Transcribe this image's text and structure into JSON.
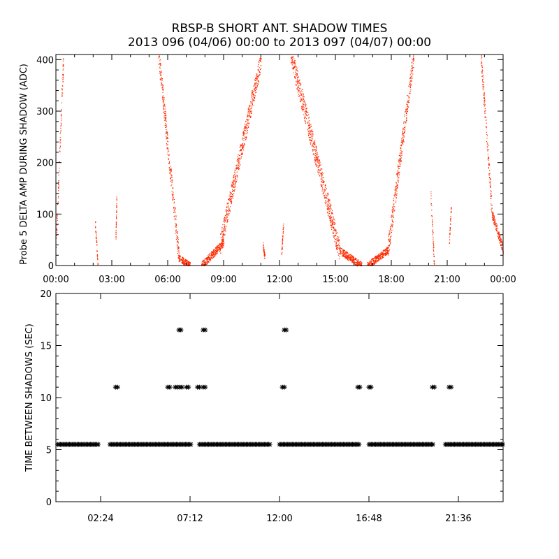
{
  "figure": {
    "title": "RBSP-B SHORT ANT. SHADOW TIMES",
    "subtitle": "2013 096 (04/06) 00:00 to 2013 097 (04/07) 00:00",
    "colors": {
      "background": "#ffffff",
      "axes": "#000000",
      "amp_points": "#ff2a00",
      "dt_points": "#000000"
    }
  },
  "chart_data": [
    {
      "type": "scatter",
      "ylabel": "Probe 5 DELTA AMP DURING SHADOW (ADC)",
      "xlim": [
        "00:00",
        "24:00"
      ],
      "ylim": [
        0,
        410
      ],
      "x_ticks": [
        "00:00",
        "03:00",
        "06:00",
        "09:00",
        "12:00",
        "15:00",
        "18:00",
        "21:00",
        "00:00"
      ],
      "y_ticks": [
        "0",
        "100",
        "200",
        "300",
        "400"
      ],
      "series": [
        {
          "color": "#ff2a00",
          "marker": "dot",
          "x_unit": "hours",
          "clusters": [
            {
              "x_start": 0.0,
              "x_end": 0.4,
              "y_start": 50,
              "y_end": 410
            },
            {
              "x_start": 2.1,
              "x_end": 2.25,
              "y_start": 80,
              "y_end": 0
            },
            {
              "x_start": 3.2,
              "x_end": 3.25,
              "y_start": 55,
              "y_end": 130
            },
            {
              "x_start": 5.5,
              "x_end": 6.6,
              "y_start": 410,
              "y_end": 15
            },
            {
              "x_start": 6.6,
              "x_end": 7.2,
              "y_start": 15,
              "y_end": 0
            },
            {
              "x_start": 7.8,
              "x_end": 9.0,
              "y_start": 0,
              "y_end": 45
            },
            {
              "x_start": 8.8,
              "x_end": 11.0,
              "y_start": 40,
              "y_end": 400
            },
            {
              "x_start": 11.1,
              "x_end": 11.2,
              "y_start": 40,
              "y_end": 15
            },
            {
              "x_start": 12.1,
              "x_end": 12.2,
              "y_start": 25,
              "y_end": 80
            },
            {
              "x_start": 12.6,
              "x_end": 15.2,
              "y_start": 410,
              "y_end": 30
            },
            {
              "x_start": 15.2,
              "x_end": 16.4,
              "y_start": 30,
              "y_end": 0
            },
            {
              "x_start": 16.7,
              "x_end": 17.8,
              "y_start": 0,
              "y_end": 30
            },
            {
              "x_start": 17.8,
              "x_end": 19.2,
              "y_start": 30,
              "y_end": 410
            },
            {
              "x_start": 20.1,
              "x_end": 20.3,
              "y_start": 140,
              "y_end": 0
            },
            {
              "x_start": 21.1,
              "x_end": 21.2,
              "y_start": 50,
              "y_end": 110
            },
            {
              "x_start": 22.8,
              "x_end": 23.4,
              "y_start": 410,
              "y_end": 100
            },
            {
              "x_start": 23.4,
              "x_end": 24.0,
              "y_start": 100,
              "y_end": 30
            }
          ]
        }
      ]
    },
    {
      "type": "scatter",
      "ylabel": "TIME BETWEEN SHADOWS (SEC)",
      "xlim": [
        "00:00",
        "24:00"
      ],
      "ylim": [
        0,
        20
      ],
      "x_ticks": [
        "02:24",
        "07:12",
        "12:00",
        "16:48",
        "21:36"
      ],
      "y_ticks": [
        "0",
        "5",
        "10",
        "15",
        "20"
      ],
      "series": [
        {
          "color": "#000000",
          "marker": "asterisk",
          "x_unit": "hours",
          "baseline_value": 5.5,
          "baseline_segments": [
            [
              0.1,
              2.3
            ],
            [
              2.9,
              7.3
            ],
            [
              7.7,
              11.5
            ],
            [
              12.0,
              16.3
            ],
            [
              16.8,
              20.3
            ],
            [
              20.9,
              24.0
            ]
          ],
          "outliers": [
            {
              "x": 3.2,
              "y": 11.0
            },
            {
              "x": 6.0,
              "y": 11.0
            },
            {
              "x": 6.4,
              "y": 11.0
            },
            {
              "x": 6.65,
              "y": 11.0
            },
            {
              "x": 7.0,
              "y": 11.0
            },
            {
              "x": 7.6,
              "y": 11.0
            },
            {
              "x": 7.9,
              "y": 11.0
            },
            {
              "x": 12.15,
              "y": 11.0
            },
            {
              "x": 16.2,
              "y": 11.0
            },
            {
              "x": 16.8,
              "y": 11.0
            },
            {
              "x": 20.2,
              "y": 11.0
            },
            {
              "x": 21.1,
              "y": 11.0
            },
            {
              "x": 6.6,
              "y": 16.5
            },
            {
              "x": 7.9,
              "y": 16.5
            },
            {
              "x": 12.25,
              "y": 16.5
            }
          ]
        }
      ]
    }
  ]
}
